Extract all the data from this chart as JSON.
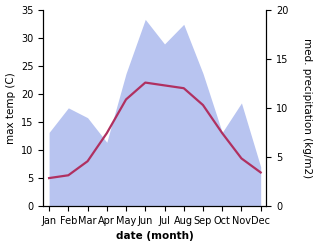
{
  "months": [
    "Jan",
    "Feb",
    "Mar",
    "Apr",
    "May",
    "Jun",
    "Jul",
    "Aug",
    "Sep",
    "Oct",
    "Nov",
    "Dec"
  ],
  "month_positions": [
    0,
    1,
    2,
    3,
    4,
    5,
    6,
    7,
    8,
    9,
    10,
    11
  ],
  "temperature": [
    5.0,
    5.5,
    8.0,
    13.0,
    19.0,
    22.0,
    21.5,
    21.0,
    18.0,
    13.0,
    8.5,
    6.0
  ],
  "precipitation": [
    7.5,
    10.0,
    9.0,
    6.5,
    13.5,
    19.0,
    16.5,
    18.5,
    13.5,
    7.5,
    10.5,
    4.0
  ],
  "temp_color": "#b03060",
  "precip_color": "#b8c4f0",
  "ylim_temp": [
    0,
    35
  ],
  "ylim_precip": [
    0,
    20
  ],
  "yticks_temp": [
    0,
    5,
    10,
    15,
    20,
    25,
    30,
    35
  ],
  "yticks_precip": [
    0,
    5,
    10,
    15,
    20
  ],
  "xlabel": "date (month)",
  "ylabel_left": "max temp (C)",
  "ylabel_right": "med. precipitation (kg/m2)",
  "label_fontsize": 7.5,
  "tick_fontsize": 7.0,
  "background_color": "#ffffff",
  "line_width": 1.6
}
